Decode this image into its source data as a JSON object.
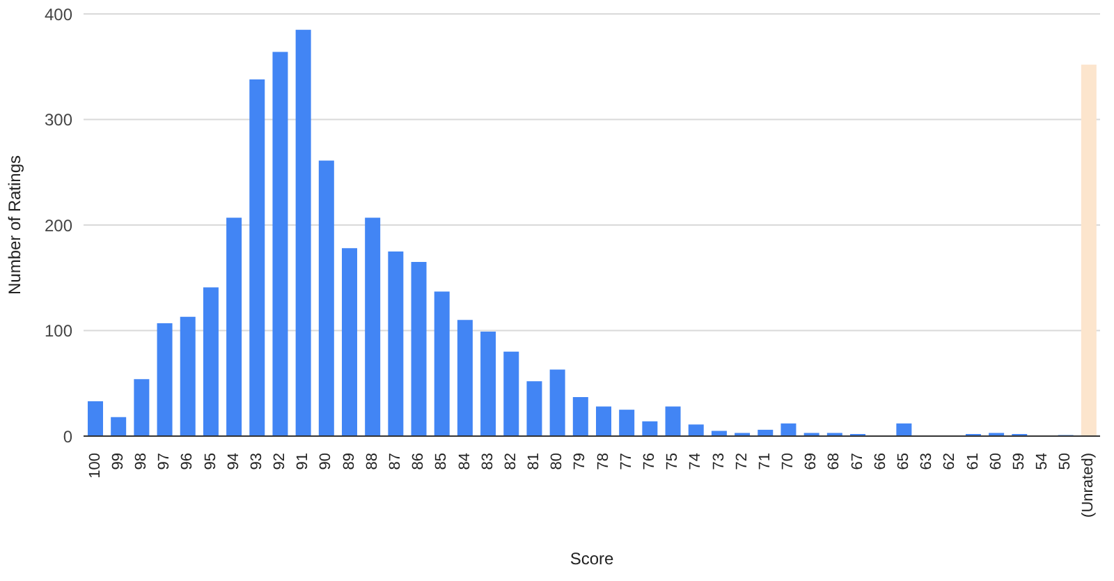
{
  "chart_data": {
    "type": "bar",
    "xlabel": "Score",
    "ylabel": "Number of Ratings",
    "categories": [
      "100",
      "99",
      "98",
      "97",
      "96",
      "95",
      "94",
      "93",
      "92",
      "91",
      "90",
      "89",
      "88",
      "87",
      "86",
      "85",
      "84",
      "83",
      "82",
      "81",
      "80",
      "79",
      "78",
      "77",
      "76",
      "75",
      "74",
      "73",
      "72",
      "71",
      "70",
      "69",
      "68",
      "67",
      "66",
      "65",
      "63",
      "62",
      "61",
      "60",
      "59",
      "54",
      "50",
      "(Unrated)"
    ],
    "values": [
      33,
      18,
      54,
      107,
      113,
      141,
      207,
      338,
      364,
      385,
      261,
      178,
      207,
      175,
      165,
      137,
      110,
      99,
      80,
      52,
      63,
      37,
      28,
      25,
      14,
      28,
      11,
      5,
      3,
      6,
      12,
      3,
      3,
      2,
      0,
      12,
      0,
      0,
      2,
      3,
      2,
      0,
      1,
      352
    ],
    "colors": [
      "#4285f4",
      "#4285f4",
      "#4285f4",
      "#4285f4",
      "#4285f4",
      "#4285f4",
      "#4285f4",
      "#4285f4",
      "#4285f4",
      "#4285f4",
      "#4285f4",
      "#4285f4",
      "#4285f4",
      "#4285f4",
      "#4285f4",
      "#4285f4",
      "#4285f4",
      "#4285f4",
      "#4285f4",
      "#4285f4",
      "#4285f4",
      "#4285f4",
      "#4285f4",
      "#4285f4",
      "#4285f4",
      "#4285f4",
      "#4285f4",
      "#4285f4",
      "#4285f4",
      "#4285f4",
      "#4285f4",
      "#4285f4",
      "#4285f4",
      "#4285f4",
      "#4285f4",
      "#4285f4",
      "#4285f4",
      "#4285f4",
      "#4285f4",
      "#4285f4",
      "#4285f4",
      "#4285f4",
      "#4285f4",
      "#fce5cd"
    ],
    "ylim": [
      0,
      400
    ],
    "yticks": [
      0,
      100,
      200,
      300,
      400
    ],
    "grid": "y"
  }
}
